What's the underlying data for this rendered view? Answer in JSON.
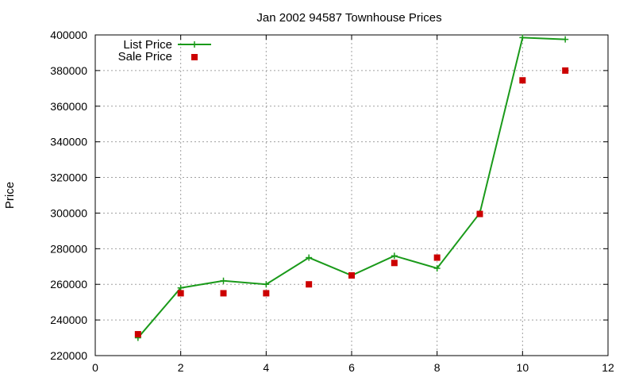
{
  "chart_data": {
    "type": "line",
    "title": "Jan 2002 94587 Townhouse Prices",
    "xlabel": "",
    "ylabel": "Price",
    "xlim": [
      0,
      12
    ],
    "ylim": [
      220000,
      400000
    ],
    "x_ticks": [
      0,
      2,
      4,
      6,
      8,
      10,
      12
    ],
    "y_ticks": [
      220000,
      240000,
      260000,
      280000,
      300000,
      320000,
      340000,
      360000,
      380000,
      400000
    ],
    "grid": true,
    "legend_position": "top-left",
    "series": [
      {
        "name": "List Price",
        "style": "line-points",
        "marker": "plus",
        "color": "#1a9a1a",
        "x": [
          1,
          2,
          3,
          4,
          5,
          6,
          7,
          8,
          9,
          10,
          11
        ],
        "y": [
          230000,
          258000,
          262000,
          260000,
          275000,
          265000,
          276000,
          269000,
          300000,
          398500,
          397500
        ]
      },
      {
        "name": "Sale Price",
        "style": "points",
        "marker": "square",
        "color": "#cc0000",
        "x": [
          1,
          2,
          3,
          4,
          5,
          6,
          7,
          8,
          9,
          10,
          11
        ],
        "y": [
          232000,
          255000,
          255000,
          255000,
          260000,
          265000,
          272000,
          275000,
          299500,
          374500,
          380000
        ]
      }
    ]
  }
}
